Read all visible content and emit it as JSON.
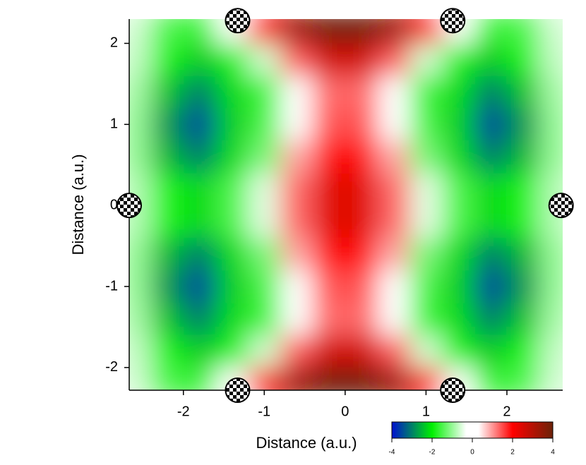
{
  "chart_data": {
    "type": "heatmap",
    "xlabel": "Distance (a.u.)",
    "ylabel": "Distance (a.u.)",
    "x": [
      -2.6,
      -2.2,
      -1.8,
      -1.4,
      -1.0,
      -0.6,
      -0.2,
      0.2,
      0.6,
      1.0,
      1.4,
      1.8,
      2.2,
      2.6
    ],
    "y": [
      2.2,
      1.8,
      1.4,
      1.0,
      0.6,
      0.2,
      -0.2,
      -0.6,
      -1.0,
      -1.4,
      -1.8,
      -2.2
    ],
    "z": [
      [
        -0.6,
        -1.5,
        -1.6,
        0,
        2.0,
        3.3,
        3.9,
        3.9,
        3.3,
        2.0,
        0,
        -1.6,
        -1.5,
        -0.6
      ],
      [
        -0.7,
        -1.8,
        -2.3,
        -1.8,
        -0.6,
        1.4,
        2.6,
        2.6,
        1.4,
        -0.6,
        -1.8,
        -2.3,
        -1.8,
        -0.7
      ],
      [
        -0.9,
        -2.4,
        -3.0,
        -2.2,
        -1.6,
        -0.2,
        1.3,
        1.3,
        -0.2,
        -1.6,
        -2.2,
        -3.0,
        -2.4,
        -0.9
      ],
      [
        -1.0,
        -2.8,
        -3.5,
        -2.3,
        -1.5,
        0.2,
        1.45,
        1.45,
        0.2,
        -1.5,
        -2.3,
        -3.5,
        -2.8,
        -1.0
      ],
      [
        -1.0,
        -2.5,
        -3.0,
        -2.2,
        -1.2,
        0.9,
        1.9,
        1.9,
        0.9,
        -1.2,
        -2.2,
        -3.0,
        -2.5,
        -1.0
      ],
      [
        -0.8,
        -1.8,
        -2.2,
        -1.5,
        -0.5,
        1.3,
        2.4,
        2.4,
        1.3,
        -0.5,
        -1.5,
        -2.2,
        -1.8,
        -0.8
      ],
      [
        -0.8,
        -1.8,
        -2.2,
        -1.5,
        -0.5,
        1.3,
        2.4,
        2.4,
        1.3,
        -0.5,
        -1.5,
        -2.2,
        -1.8,
        -0.8
      ],
      [
        -1.0,
        -2.5,
        -3.0,
        -2.2,
        -1.2,
        0.9,
        1.9,
        1.9,
        0.9,
        -1.2,
        -2.2,
        -3.0,
        -2.5,
        -1.0
      ],
      [
        -1.0,
        -2.8,
        -3.5,
        -2.3,
        -1.5,
        0.2,
        1.45,
        1.45,
        0.2,
        -1.5,
        -2.3,
        -3.5,
        -2.8,
        -1.0
      ],
      [
        -0.9,
        -2.4,
        -3.0,
        -2.2,
        -1.6,
        -0.2,
        1.3,
        1.3,
        -0.2,
        -1.6,
        -2.2,
        -3.0,
        -2.4,
        -0.9
      ],
      [
        -0.7,
        -1.8,
        -2.3,
        -1.8,
        -0.6,
        1.4,
        2.6,
        2.6,
        1.4,
        -0.6,
        -1.8,
        -2.3,
        -1.8,
        -0.7
      ],
      [
        -0.6,
        -1.5,
        -1.6,
        0,
        2.0,
        3.3,
        3.9,
        3.9,
        3.3,
        2.0,
        0,
        -1.6,
        -1.5,
        -0.6
      ]
    ],
    "xlim": [
      -2.67,
      2.69
    ],
    "ylim": [
      -2.28,
      2.3
    ],
    "xticks": [
      -2,
      -1,
      0,
      1,
      2
    ],
    "yticks": [
      -2,
      -1,
      0,
      1,
      2
    ],
    "colorscale": [
      [
        -4,
        "#0010d0"
      ],
      [
        -2,
        "#00f000"
      ],
      [
        -0.3,
        "#ffffff"
      ],
      [
        0.3,
        "#ffffff"
      ],
      [
        2,
        "#ff0000"
      ],
      [
        4,
        "#6b2208"
      ]
    ],
    "colorbar_lim": [
      -4,
      4
    ],
    "colorbar_ticks": [
      -4,
      -2,
      0,
      2,
      4
    ],
    "markers": {
      "x": [
        -1.33,
        1.33,
        -2.67,
        2.67,
        -1.33,
        1.33
      ],
      "y": [
        2.28,
        2.28,
        0,
        0,
        -2.28,
        -2.28
      ]
    }
  }
}
